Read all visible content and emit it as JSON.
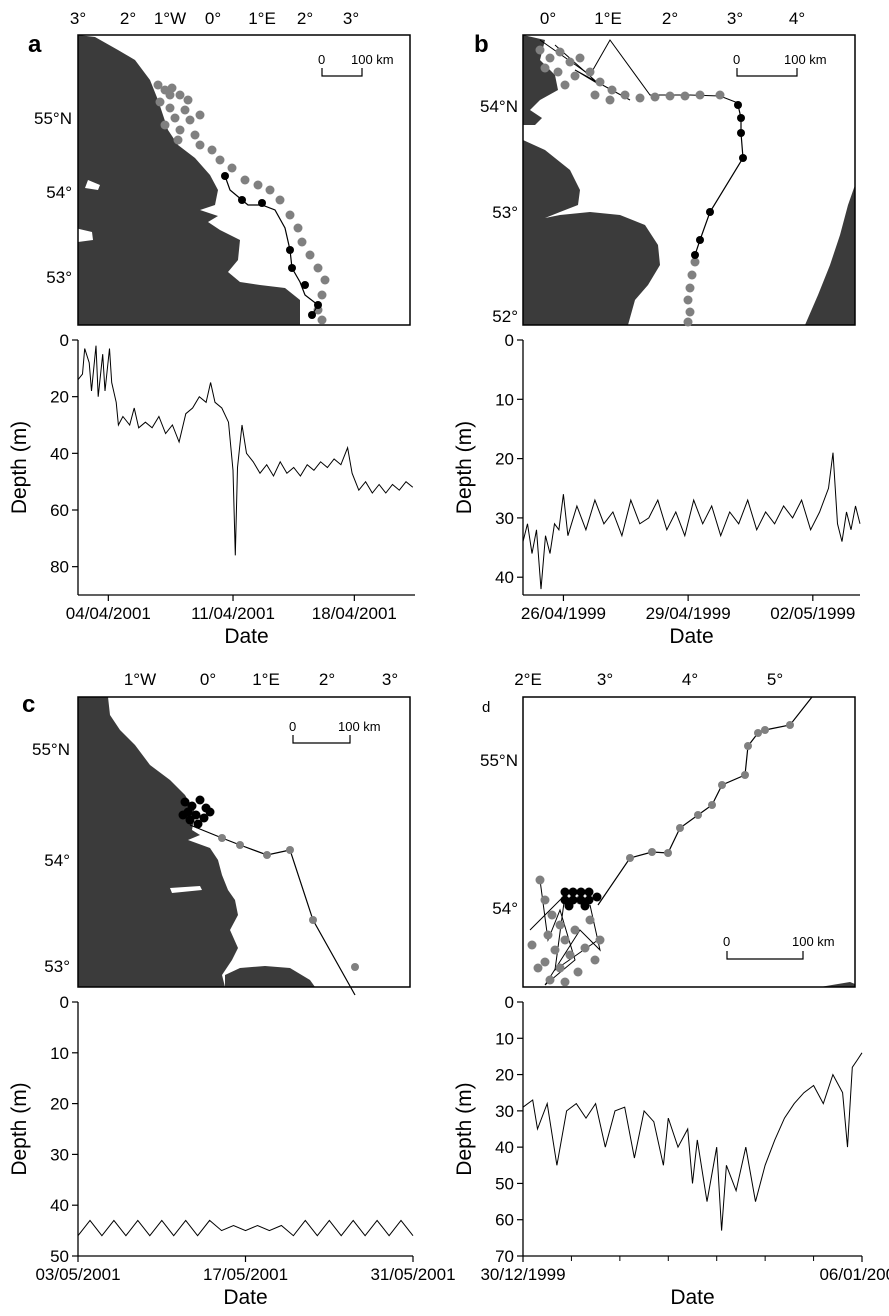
{
  "colors": {
    "land": "#3b3b3b",
    "sea": "#ffffff",
    "fix_grey": "#808080",
    "fix_black": "#000000",
    "trace": "#000000"
  },
  "chart_data": [
    {
      "panel": "a",
      "type": "map",
      "lon_ticks": [
        "3°",
        "2°",
        "1°W",
        "0°",
        "1°E",
        "2°",
        "3°"
      ],
      "lat_ticks": [
        "55°N",
        "54°",
        "53°"
      ],
      "scale_bar": {
        "zero": "0",
        "label": "100 km"
      }
    },
    {
      "panel": "a",
      "type": "line",
      "xlabel": "Date",
      "ylabel": "Depth (m)",
      "x_ticks": [
        "04/04/2001",
        "11/04/2001",
        "18/04/2001"
      ],
      "y_ticks": [
        "0",
        "20",
        "40",
        "60",
        "80"
      ],
      "ylim": [
        0,
        90
      ],
      "y_inverted": true,
      "series": [
        {
          "points": [
            [
              0,
              14
            ],
            [
              0.2,
              12
            ],
            [
              0.3,
              3
            ],
            [
              0.5,
              8
            ],
            [
              0.6,
              18
            ],
            [
              0.8,
              2
            ],
            [
              0.9,
              20
            ],
            [
              1.1,
              5
            ],
            [
              1.2,
              18
            ],
            [
              1.4,
              3
            ],
            [
              1.5,
              15
            ],
            [
              1.7,
              22
            ],
            [
              1.8,
              30
            ],
            [
              2,
              27
            ],
            [
              2.3,
              30
            ],
            [
              2.5,
              24
            ],
            [
              2.7,
              31
            ],
            [
              3,
              29
            ],
            [
              3.3,
              31
            ],
            [
              3.6,
              27
            ],
            [
              3.9,
              33
            ],
            [
              4.2,
              30
            ],
            [
              4.5,
              36
            ],
            [
              4.8,
              26
            ],
            [
              5.1,
              24
            ],
            [
              5.4,
              20
            ],
            [
              5.7,
              22
            ],
            [
              5.9,
              15
            ],
            [
              6.1,
              22
            ],
            [
              6.4,
              24
            ],
            [
              6.7,
              29
            ],
            [
              6.9,
              46
            ],
            [
              7,
              76
            ],
            [
              7.1,
              45
            ],
            [
              7.3,
              30
            ],
            [
              7.5,
              40
            ],
            [
              7.8,
              43
            ],
            [
              8.1,
              47
            ],
            [
              8.4,
              44
            ],
            [
              8.7,
              48
            ],
            [
              9,
              43
            ],
            [
              9.3,
              47
            ],
            [
              9.6,
              45
            ],
            [
              9.9,
              48
            ],
            [
              10.2,
              44
            ],
            [
              10.5,
              46
            ],
            [
              10.8,
              43
            ],
            [
              11.1,
              45
            ],
            [
              11.4,
              42
            ],
            [
              11.7,
              44
            ],
            [
              12,
              38
            ],
            [
              12.2,
              47
            ],
            [
              12.5,
              53
            ],
            [
              12.8,
              50
            ],
            [
              13.1,
              54
            ],
            [
              13.4,
              51
            ],
            [
              13.7,
              54
            ],
            [
              14,
              51
            ],
            [
              14.3,
              53
            ],
            [
              14.6,
              50
            ],
            [
              14.9,
              52
            ]
          ]
        }
      ]
    },
    {
      "panel": "b",
      "type": "map",
      "lon_ticks": [
        "0°",
        "1°E",
        "2°",
        "3°",
        "4°"
      ],
      "lat_ticks": [
        "54°N",
        "53°",
        "52°"
      ],
      "scale_bar": {
        "zero": "0",
        "label": "100 km"
      }
    },
    {
      "panel": "b",
      "type": "line",
      "xlabel": "Date",
      "ylabel": "Depth (m)",
      "x_ticks": [
        "26/04/1999",
        "29/04/1999",
        "02/05/1999"
      ],
      "y_ticks": [
        "0",
        "10",
        "20",
        "30",
        "40"
      ],
      "ylim": [
        0,
        43
      ],
      "y_inverted": true,
      "series": [
        {
          "points": [
            [
              0,
              34
            ],
            [
              0.1,
              31
            ],
            [
              0.2,
              36
            ],
            [
              0.3,
              32
            ],
            [
              0.4,
              42
            ],
            [
              0.5,
              33
            ],
            [
              0.6,
              36
            ],
            [
              0.7,
              31
            ],
            [
              0.8,
              32
            ],
            [
              0.9,
              26
            ],
            [
              1,
              33
            ],
            [
              1.2,
              28
            ],
            [
              1.4,
              32
            ],
            [
              1.6,
              27
            ],
            [
              1.8,
              31
            ],
            [
              2,
              29
            ],
            [
              2.2,
              33
            ],
            [
              2.4,
              27
            ],
            [
              2.6,
              31
            ],
            [
              2.8,
              30
            ],
            [
              3,
              27
            ],
            [
              3.2,
              32
            ],
            [
              3.4,
              29
            ],
            [
              3.6,
              33
            ],
            [
              3.8,
              27
            ],
            [
              4,
              31
            ],
            [
              4.2,
              28
            ],
            [
              4.4,
              33
            ],
            [
              4.6,
              29
            ],
            [
              4.8,
              31
            ],
            [
              5,
              27
            ],
            [
              5.2,
              32
            ],
            [
              5.4,
              29
            ],
            [
              5.6,
              31
            ],
            [
              5.8,
              28
            ],
            [
              6,
              30
            ],
            [
              6.2,
              27
            ],
            [
              6.4,
              32
            ],
            [
              6.6,
              29
            ],
            [
              6.8,
              25
            ],
            [
              6.9,
              19
            ],
            [
              7,
              31
            ],
            [
              7.1,
              34
            ],
            [
              7.2,
              29
            ],
            [
              7.3,
              32
            ],
            [
              7.4,
              28
            ],
            [
              7.5,
              31
            ]
          ]
        }
      ]
    },
    {
      "panel": "c",
      "type": "map",
      "lon_ticks": [
        "1°W",
        "0°",
        "1°E",
        "2°",
        "3°"
      ],
      "lat_ticks": [
        "55°N",
        "54°",
        "53°"
      ],
      "scale_bar": {
        "zero": "0",
        "label": "100 km"
      }
    },
    {
      "panel": "c",
      "type": "line",
      "xlabel": "Date",
      "ylabel": "Depth (m)",
      "x_ticks": [
        "03/05/2001",
        "17/05/2001",
        "31/05/2001"
      ],
      "y_ticks": [
        "0",
        "10",
        "20",
        "30",
        "40",
        "50"
      ],
      "ylim": [
        0,
        50
      ],
      "y_inverted": true,
      "series": [
        {
          "points": [
            [
              0,
              46
            ],
            [
              1,
              43
            ],
            [
              2,
              46
            ],
            [
              3,
              43
            ],
            [
              4,
              46
            ],
            [
              5,
              43
            ],
            [
              6,
              46
            ],
            [
              7,
              43
            ],
            [
              8,
              46
            ],
            [
              9,
              43
            ],
            [
              10,
              46
            ],
            [
              11,
              43
            ],
            [
              12,
              45
            ],
            [
              13,
              44
            ],
            [
              14,
              45
            ],
            [
              15,
              44
            ],
            [
              16,
              45
            ],
            [
              17,
              44
            ],
            [
              18,
              46
            ],
            [
              19,
              43
            ],
            [
              20,
              46
            ],
            [
              21,
              43
            ],
            [
              22,
              46
            ],
            [
              23,
              43
            ],
            [
              24,
              46
            ],
            [
              25,
              43
            ],
            [
              26,
              46
            ],
            [
              27,
              43
            ],
            [
              28,
              46
            ]
          ]
        }
      ]
    },
    {
      "panel": "d",
      "type": "map",
      "lon_ticks": [
        "2°E",
        "3°",
        "4°",
        "5°"
      ],
      "lat_ticks": [
        "55°N",
        "54°"
      ],
      "scale_bar": {
        "zero": "0",
        "label": "100 km"
      }
    },
    {
      "panel": "d",
      "type": "line",
      "xlabel": "Date",
      "ylabel": "Depth (m)",
      "x_ticks": [
        "30/12/1999",
        "06/01/2000"
      ],
      "y_ticks": [
        "0",
        "10",
        "20",
        "30",
        "40",
        "50",
        "60",
        "70"
      ],
      "ylim": [
        0,
        70
      ],
      "y_inverted": true,
      "series": [
        {
          "points": [
            [
              0,
              29
            ],
            [
              0.2,
              27
            ],
            [
              0.3,
              35
            ],
            [
              0.5,
              28
            ],
            [
              0.7,
              45
            ],
            [
              0.9,
              30
            ],
            [
              1.1,
              28
            ],
            [
              1.3,
              32
            ],
            [
              1.5,
              28
            ],
            [
              1.7,
              40
            ],
            [
              1.9,
              30
            ],
            [
              2.1,
              29
            ],
            [
              2.3,
              43
            ],
            [
              2.5,
              30
            ],
            [
              2.7,
              33
            ],
            [
              2.9,
              45
            ],
            [
              3,
              32
            ],
            [
              3.2,
              40
            ],
            [
              3.4,
              35
            ],
            [
              3.5,
              50
            ],
            [
              3.6,
              38
            ],
            [
              3.8,
              55
            ],
            [
              4,
              40
            ],
            [
              4.1,
              63
            ],
            [
              4.2,
              45
            ],
            [
              4.4,
              52
            ],
            [
              4.6,
              40
            ],
            [
              4.8,
              55
            ],
            [
              5,
              45
            ],
            [
              5.2,
              38
            ],
            [
              5.4,
              32
            ],
            [
              5.6,
              28
            ],
            [
              5.8,
              25
            ],
            [
              6,
              23
            ],
            [
              6.2,
              28
            ],
            [
              6.4,
              20
            ],
            [
              6.6,
              25
            ],
            [
              6.7,
              40
            ],
            [
              6.8,
              18
            ],
            [
              6.9,
              16
            ],
            [
              7,
              14
            ]
          ]
        }
      ]
    }
  ]
}
